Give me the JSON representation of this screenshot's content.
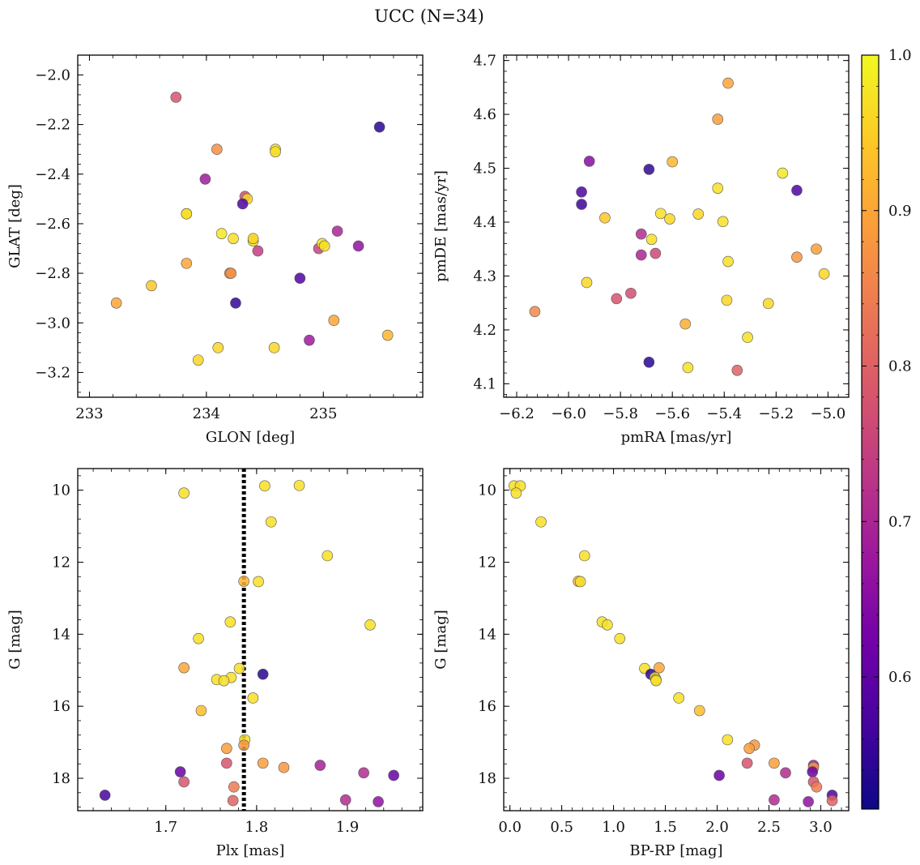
{
  "figure": {
    "title": "UCC (N=34)"
  },
  "colors": {
    "colormap": [
      "#0d0887",
      "#46039f",
      "#7201a8",
      "#9c179e",
      "#bd3786",
      "#d8576b",
      "#ed7953",
      "#fb9f3a",
      "#fdca26",
      "#f0f921"
    ],
    "marker_edge": "#555555",
    "vline": "#000000"
  },
  "chart_data": [
    {
      "type": "scatter",
      "id": "lonlat",
      "xlabel": "GLON [deg]",
      "ylabel": "GLAT [deg]",
      "xlim": [
        232.9,
        235.85
      ],
      "ylim": [
        -3.3,
        -1.92
      ],
      "xticks": [
        233,
        234,
        235
      ],
      "yticks": [
        -3.2,
        -3.0,
        -2.8,
        -2.6,
        -2.4,
        -2.2,
        -2.0
      ],
      "points": [
        {
          "x": 233.74,
          "y": -2.09,
          "c": 0.78
        },
        {
          "x": 234.09,
          "y": -2.3,
          "c": 0.87
        },
        {
          "x": 234.59,
          "y": -2.3,
          "c": 0.97
        },
        {
          "x": 234.59,
          "y": -2.31,
          "c": 0.97
        },
        {
          "x": 235.48,
          "y": -2.21,
          "c": 0.54
        },
        {
          "x": 233.99,
          "y": -2.42,
          "c": 0.68
        },
        {
          "x": 234.33,
          "y": -2.49,
          "c": 0.77
        },
        {
          "x": 234.35,
          "y": -2.5,
          "c": 0.96
        },
        {
          "x": 234.31,
          "y": -2.52,
          "c": 0.58
        },
        {
          "x": 233.83,
          "y": -2.56,
          "c": 0.96
        },
        {
          "x": 233.83,
          "y": -2.56,
          "c": 0.97
        },
        {
          "x": 234.13,
          "y": -2.64,
          "c": 0.98
        },
        {
          "x": 234.23,
          "y": -2.66,
          "c": 0.97
        },
        {
          "x": 234.4,
          "y": -2.67,
          "c": 0.97
        },
        {
          "x": 234.4,
          "y": -2.66,
          "c": 0.96
        },
        {
          "x": 234.44,
          "y": -2.71,
          "c": 0.74
        },
        {
          "x": 235.12,
          "y": -2.63,
          "c": 0.7
        },
        {
          "x": 235.3,
          "y": -2.69,
          "c": 0.66
        },
        {
          "x": 234.96,
          "y": -2.7,
          "c": 0.75
        },
        {
          "x": 234.99,
          "y": -2.68,
          "c": 0.97
        },
        {
          "x": 235.01,
          "y": -2.69,
          "c": 0.97
        },
        {
          "x": 233.83,
          "y": -2.76,
          "c": 0.9
        },
        {
          "x": 234.2,
          "y": -2.8,
          "c": 0.87
        },
        {
          "x": 234.21,
          "y": -2.8,
          "c": 0.87
        },
        {
          "x": 234.8,
          "y": -2.82,
          "c": 0.58
        },
        {
          "x": 233.53,
          "y": -2.85,
          "c": 0.94
        },
        {
          "x": 233.23,
          "y": -2.92,
          "c": 0.9
        },
        {
          "x": 234.25,
          "y": -2.92,
          "c": 0.55
        },
        {
          "x": 235.09,
          "y": -2.99,
          "c": 0.9
        },
        {
          "x": 235.55,
          "y": -3.05,
          "c": 0.92
        },
        {
          "x": 234.88,
          "y": -3.07,
          "c": 0.68
        },
        {
          "x": 234.1,
          "y": -3.1,
          "c": 0.96
        },
        {
          "x": 234.58,
          "y": -3.1,
          "c": 0.96
        },
        {
          "x": 233.93,
          "y": -3.15,
          "c": 0.96
        }
      ]
    },
    {
      "type": "scatter",
      "id": "pm",
      "xlabel": "pmRA [mas/yr]",
      "ylabel": "pmDE [mas/yr]",
      "xlim": [
        -6.25,
        -4.92
      ],
      "ylim": [
        4.075,
        4.71
      ],
      "xticks": [
        -6.2,
        -6.0,
        -5.8,
        -5.6,
        -5.4,
        -5.2,
        -5.0
      ],
      "yticks": [
        4.1,
        4.2,
        4.3,
        4.4,
        4.5,
        4.6,
        4.7
      ],
      "points": [
        {
          "x": -5.385,
          "y": 4.658,
          "c": 0.9
        },
        {
          "x": -5.425,
          "y": 4.591,
          "c": 0.89
        },
        {
          "x": -5.92,
          "y": 4.513,
          "c": 0.65
        },
        {
          "x": -5.69,
          "y": 4.498,
          "c": 0.55
        },
        {
          "x": -5.6,
          "y": 4.512,
          "c": 0.92
        },
        {
          "x": -5.175,
          "y": 4.491,
          "c": 0.98
        },
        {
          "x": -5.95,
          "y": 4.456,
          "c": 0.58
        },
        {
          "x": -5.95,
          "y": 4.433,
          "c": 0.56
        },
        {
          "x": -5.425,
          "y": 4.463,
          "c": 0.97
        },
        {
          "x": -5.12,
          "y": 4.459,
          "c": 0.58
        },
        {
          "x": -5.86,
          "y": 4.408,
          "c": 0.94
        },
        {
          "x": -5.645,
          "y": 4.416,
          "c": 0.97
        },
        {
          "x": -5.61,
          "y": 4.406,
          "c": 0.96
        },
        {
          "x": -5.5,
          "y": 4.415,
          "c": 0.96
        },
        {
          "x": -5.405,
          "y": 4.401,
          "c": 0.97
        },
        {
          "x": -5.72,
          "y": 4.378,
          "c": 0.71
        },
        {
          "x": -5.68,
          "y": 4.368,
          "c": 0.97
        },
        {
          "x": -5.72,
          "y": 4.339,
          "c": 0.7
        },
        {
          "x": -5.665,
          "y": 4.342,
          "c": 0.76
        },
        {
          "x": -5.385,
          "y": 4.327,
          "c": 0.97
        },
        {
          "x": -5.045,
          "y": 4.35,
          "c": 0.89
        },
        {
          "x": -5.12,
          "y": 4.335,
          "c": 0.88
        },
        {
          "x": -5.015,
          "y": 4.304,
          "c": 0.96
        },
        {
          "x": -5.93,
          "y": 4.288,
          "c": 0.96
        },
        {
          "x": -5.76,
          "y": 4.268,
          "c": 0.77
        },
        {
          "x": -5.815,
          "y": 4.258,
          "c": 0.78
        },
        {
          "x": -5.39,
          "y": 4.255,
          "c": 0.96
        },
        {
          "x": -5.23,
          "y": 4.249,
          "c": 0.96
        },
        {
          "x": -6.13,
          "y": 4.234,
          "c": 0.86
        },
        {
          "x": -5.55,
          "y": 4.211,
          "c": 0.91
        },
        {
          "x": -5.31,
          "y": 4.186,
          "c": 0.97
        },
        {
          "x": -5.69,
          "y": 4.14,
          "c": 0.54
        },
        {
          "x": -5.54,
          "y": 4.13,
          "c": 0.97
        },
        {
          "x": -5.35,
          "y": 4.125,
          "c": 0.8
        }
      ]
    },
    {
      "type": "scatter",
      "id": "plx",
      "xlabel": "Plx [mas]",
      "ylabel": "G [mag]",
      "xlim": [
        1.603,
        1.983
      ],
      "ylim": [
        18.9,
        9.4
      ],
      "xticks": [
        1.7,
        1.8,
        1.9
      ],
      "yticks": [
        10,
        12,
        14,
        16,
        18
      ],
      "vline": 1.786,
      "points": [
        {
          "x": 1.72,
          "y": 10.08,
          "c": 0.97
        },
        {
          "x": 1.809,
          "y": 9.88,
          "c": 0.97
        },
        {
          "x": 1.847,
          "y": 9.87,
          "c": 0.97
        },
        {
          "x": 1.816,
          "y": 10.88,
          "c": 0.97
        },
        {
          "x": 1.878,
          "y": 11.82,
          "c": 0.97
        },
        {
          "x": 1.786,
          "y": 12.53,
          "c": 0.92
        },
        {
          "x": 1.802,
          "y": 12.54,
          "c": 0.97
        },
        {
          "x": 1.771,
          "y": 13.66,
          "c": 0.97
        },
        {
          "x": 1.925,
          "y": 13.74,
          "c": 0.97
        },
        {
          "x": 1.736,
          "y": 14.12,
          "c": 0.97
        },
        {
          "x": 1.72,
          "y": 14.93,
          "c": 0.9
        },
        {
          "x": 1.781,
          "y": 14.95,
          "c": 0.97
        },
        {
          "x": 1.772,
          "y": 15.2,
          "c": 0.97
        },
        {
          "x": 1.756,
          "y": 15.26,
          "c": 0.97
        },
        {
          "x": 1.764,
          "y": 15.29,
          "c": 0.97
        },
        {
          "x": 1.807,
          "y": 15.11,
          "c": 0.54
        },
        {
          "x": 1.796,
          "y": 15.77,
          "c": 0.97
        },
        {
          "x": 1.739,
          "y": 16.12,
          "c": 0.93
        },
        {
          "x": 1.787,
          "y": 16.93,
          "c": 0.97
        },
        {
          "x": 1.786,
          "y": 17.08,
          "c": 0.88
        },
        {
          "x": 1.767,
          "y": 17.17,
          "c": 0.89
        },
        {
          "x": 1.767,
          "y": 17.58,
          "c": 0.78
        },
        {
          "x": 1.807,
          "y": 17.58,
          "c": 0.89
        },
        {
          "x": 1.83,
          "y": 17.7,
          "c": 0.88
        },
        {
          "x": 1.87,
          "y": 17.64,
          "c": 0.69
        },
        {
          "x": 1.716,
          "y": 17.82,
          "c": 0.61
        },
        {
          "x": 1.918,
          "y": 17.85,
          "c": 0.71
        },
        {
          "x": 1.951,
          "y": 17.92,
          "c": 0.61
        },
        {
          "x": 1.72,
          "y": 18.1,
          "c": 0.78
        },
        {
          "x": 1.775,
          "y": 18.24,
          "c": 0.84
        },
        {
          "x": 1.633,
          "y": 18.47,
          "c": 0.57
        },
        {
          "x": 1.774,
          "y": 18.62,
          "c": 0.8
        },
        {
          "x": 1.898,
          "y": 18.6,
          "c": 0.71
        },
        {
          "x": 1.934,
          "y": 18.65,
          "c": 0.66
        }
      ]
    },
    {
      "type": "scatter",
      "id": "cmd",
      "xlabel": "BP-RP [mag]",
      "ylabel": "G [mag]",
      "xlim": [
        -0.06,
        3.27
      ],
      "ylim": [
        18.9,
        9.4
      ],
      "xticks": [
        0.0,
        0.5,
        1.0,
        1.5,
        2.0,
        2.5,
        3.0
      ],
      "yticks": [
        10,
        12,
        14,
        16,
        18
      ],
      "points": [
        {
          "x": 0.04,
          "y": 9.88,
          "c": 0.97
        },
        {
          "x": 0.1,
          "y": 9.88,
          "c": 0.97
        },
        {
          "x": 0.06,
          "y": 10.08,
          "c": 0.97
        },
        {
          "x": 0.3,
          "y": 10.88,
          "c": 0.97
        },
        {
          "x": 0.72,
          "y": 11.82,
          "c": 0.97
        },
        {
          "x": 0.66,
          "y": 12.53,
          "c": 0.92
        },
        {
          "x": 0.68,
          "y": 12.54,
          "c": 0.97
        },
        {
          "x": 0.89,
          "y": 13.66,
          "c": 0.97
        },
        {
          "x": 0.94,
          "y": 13.74,
          "c": 0.97
        },
        {
          "x": 1.06,
          "y": 14.12,
          "c": 0.97
        },
        {
          "x": 1.3,
          "y": 14.95,
          "c": 0.97
        },
        {
          "x": 1.44,
          "y": 14.93,
          "c": 0.9
        },
        {
          "x": 1.36,
          "y": 15.11,
          "c": 0.54
        },
        {
          "x": 1.4,
          "y": 15.2,
          "c": 0.97
        },
        {
          "x": 1.41,
          "y": 15.26,
          "c": 0.97
        },
        {
          "x": 1.41,
          "y": 15.29,
          "c": 0.97
        },
        {
          "x": 1.63,
          "y": 15.77,
          "c": 0.97
        },
        {
          "x": 1.83,
          "y": 16.12,
          "c": 0.93
        },
        {
          "x": 2.1,
          "y": 16.93,
          "c": 0.97
        },
        {
          "x": 2.36,
          "y": 17.08,
          "c": 0.88
        },
        {
          "x": 2.31,
          "y": 17.17,
          "c": 0.89
        },
        {
          "x": 2.29,
          "y": 17.58,
          "c": 0.78
        },
        {
          "x": 2.55,
          "y": 17.58,
          "c": 0.89
        },
        {
          "x": 2.93,
          "y": 17.64,
          "c": 0.69
        },
        {
          "x": 2.93,
          "y": 17.7,
          "c": 0.88
        },
        {
          "x": 2.66,
          "y": 17.85,
          "c": 0.71
        },
        {
          "x": 2.92,
          "y": 17.82,
          "c": 0.61
        },
        {
          "x": 2.02,
          "y": 17.92,
          "c": 0.61
        },
        {
          "x": 2.93,
          "y": 18.1,
          "c": 0.78
        },
        {
          "x": 2.96,
          "y": 18.24,
          "c": 0.84
        },
        {
          "x": 3.11,
          "y": 18.47,
          "c": 0.57
        },
        {
          "x": 2.55,
          "y": 18.6,
          "c": 0.71
        },
        {
          "x": 3.11,
          "y": 18.62,
          "c": 0.8
        },
        {
          "x": 2.88,
          "y": 18.65,
          "c": 0.66
        }
      ]
    }
  ],
  "colorbar": {
    "cmin": 0.515,
    "cmax": 1.0,
    "ticks": [
      0.6,
      0.7,
      0.8,
      0.9,
      1.0
    ],
    "tick_labels": [
      "0.6",
      "0.7",
      "0.8",
      "0.9",
      "1.0"
    ]
  }
}
